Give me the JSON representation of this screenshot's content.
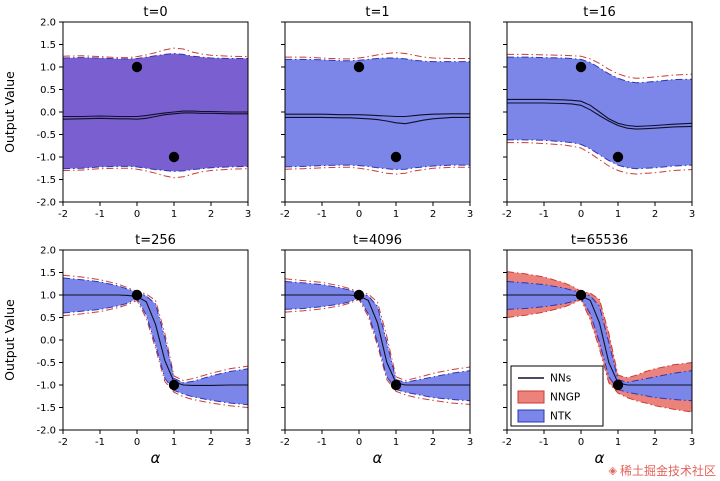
{
  "figure": {
    "ylabel": "Output Value",
    "xlabel": "α",
    "xlim": [
      -2,
      3
    ],
    "ylim": [
      -2,
      2
    ],
    "x_ticks": [
      "-2",
      "-1",
      "0",
      "1",
      "2",
      "3"
    ],
    "x_tick_values": [
      -2,
      -1,
      0,
      1,
      2,
      3
    ],
    "y_ticks": [
      "-2.0",
      "-1.5",
      "-1.0",
      "-0.5",
      "0.0",
      "0.5",
      "1.0",
      "1.5",
      "2.0"
    ],
    "y_tick_values": [
      -2,
      -1.5,
      -1,
      -0.5,
      0,
      0.5,
      1,
      1.5,
      2
    ]
  },
  "colors": {
    "ntk_fill": "#7b86e8",
    "overlap_fill": "#7a5fd0",
    "nngp_fill": "#ec827c",
    "ntk_edge": "#2a35b8",
    "nngp_edge": "#cc3b33",
    "nn_line": "#101028",
    "point": "#000000"
  },
  "legend": {
    "position": "lower-left of t=65536 panel",
    "entries": [
      {
        "label": "NNs",
        "type": "line",
        "color": "#101028",
        "edge": "#101028"
      },
      {
        "label": "NNGP",
        "type": "patch",
        "color": "#ec827c",
        "edge": "#cc3b33"
      },
      {
        "label": "NTK",
        "type": "patch",
        "color": "#7b86e8",
        "edge": "#2a35b8"
      }
    ]
  },
  "watermark": {
    "logo_icon": "juejin-gem-icon",
    "text": "稀土掘金技术社区"
  },
  "chart_data": {
    "type": "line",
    "layout": "2x3 grid of subplots, shared axes",
    "xlabel": "α",
    "ylabel": "Output Value",
    "xlim": [
      -2,
      3
    ],
    "ylim": [
      -2,
      2
    ],
    "train_points": [
      [
        0,
        1
      ],
      [
        1,
        -1
      ]
    ],
    "x": [
      -2,
      -1.5,
      -1,
      -0.5,
      -0.25,
      0,
      0.25,
      0.5,
      0.75,
      1,
      1.25,
      1.5,
      1.75,
      2,
      2.5,
      3
    ],
    "panels": [
      {
        "title": "t=0",
        "fill": "overlap",
        "show_nngp_fill": false,
        "legend": false,
        "nn_lines": [
          [
            -0.1,
            -0.1,
            -0.09,
            -0.1,
            -0.1,
            -0.1,
            -0.08,
            -0.05,
            -0.02,
            0.0,
            0.02,
            0.02,
            0.01,
            0.01,
            0.0,
            0.0
          ],
          [
            -0.16,
            -0.15,
            -0.14,
            -0.15,
            -0.15,
            -0.16,
            -0.14,
            -0.1,
            -0.06,
            -0.04,
            -0.02,
            -0.02,
            -0.03,
            -0.03,
            -0.04,
            -0.04
          ]
        ],
        "ntk_upper": [
          1.2,
          1.21,
          1.2,
          1.18,
          1.18,
          1.19,
          1.22,
          1.25,
          1.28,
          1.3,
          1.28,
          1.24,
          1.22,
          1.2,
          1.19,
          1.19
        ],
        "ntk_lower": [
          -1.26,
          -1.25,
          -1.22,
          -1.21,
          -1.21,
          -1.22,
          -1.25,
          -1.28,
          -1.3,
          -1.32,
          -1.31,
          -1.28,
          -1.26,
          -1.24,
          -1.22,
          -1.21
        ],
        "nngp_upper": [
          1.24,
          1.25,
          1.23,
          1.21,
          1.21,
          1.23,
          1.27,
          1.32,
          1.38,
          1.42,
          1.4,
          1.33,
          1.29,
          1.26,
          1.24,
          1.23
        ],
        "nngp_lower": [
          -1.3,
          -1.29,
          -1.26,
          -1.25,
          -1.25,
          -1.27,
          -1.31,
          -1.36,
          -1.42,
          -1.46,
          -1.44,
          -1.38,
          -1.33,
          -1.3,
          -1.27,
          -1.26
        ]
      },
      {
        "title": "t=1",
        "fill": "ntk",
        "show_nngp_fill": false,
        "legend": false,
        "nn_lines": [
          [
            -0.05,
            -0.05,
            -0.05,
            -0.06,
            -0.06,
            -0.06,
            -0.07,
            -0.08,
            -0.09,
            -0.1,
            -0.1,
            -0.08,
            -0.06,
            -0.05,
            -0.04,
            -0.04
          ],
          [
            -0.12,
            -0.12,
            -0.12,
            -0.13,
            -0.13,
            -0.14,
            -0.15,
            -0.17,
            -0.2,
            -0.24,
            -0.26,
            -0.22,
            -0.18,
            -0.15,
            -0.12,
            -0.12
          ]
        ],
        "ntk_upper": [
          1.17,
          1.17,
          1.16,
          1.14,
          1.14,
          1.15,
          1.17,
          1.19,
          1.2,
          1.2,
          1.18,
          1.15,
          1.13,
          1.12,
          1.12,
          1.12
        ],
        "ntk_lower": [
          -1.22,
          -1.21,
          -1.19,
          -1.18,
          -1.18,
          -1.19,
          -1.21,
          -1.24,
          -1.26,
          -1.28,
          -1.27,
          -1.24,
          -1.22,
          -1.2,
          -1.18,
          -1.18
        ],
        "nngp_upper": [
          1.22,
          1.22,
          1.2,
          1.18,
          1.18,
          1.2,
          1.23,
          1.27,
          1.3,
          1.32,
          1.3,
          1.26,
          1.22,
          1.2,
          1.19,
          1.19
        ],
        "nngp_lower": [
          -1.27,
          -1.26,
          -1.24,
          -1.23,
          -1.23,
          -1.25,
          -1.28,
          -1.32,
          -1.36,
          -1.38,
          -1.36,
          -1.31,
          -1.28,
          -1.25,
          -1.23,
          -1.23
        ]
      },
      {
        "title": "t=16",
        "fill": "ntk",
        "show_nngp_fill": false,
        "legend": false,
        "nn_lines": [
          [
            0.28,
            0.28,
            0.28,
            0.27,
            0.26,
            0.24,
            0.15,
            0.0,
            -0.15,
            -0.25,
            -0.3,
            -0.32,
            -0.31,
            -0.3,
            -0.27,
            -0.25
          ],
          [
            0.2,
            0.2,
            0.2,
            0.19,
            0.18,
            0.15,
            0.05,
            -0.08,
            -0.2,
            -0.3,
            -0.36,
            -0.38,
            -0.37,
            -0.36,
            -0.33,
            -0.32
          ]
        ],
        "ntk_upper": [
          1.22,
          1.22,
          1.21,
          1.2,
          1.19,
          1.17,
          1.1,
          0.98,
          0.85,
          0.75,
          0.68,
          0.65,
          0.66,
          0.68,
          0.72,
          0.73
        ],
        "ntk_lower": [
          -0.62,
          -0.62,
          -0.63,
          -0.66,
          -0.68,
          -0.72,
          -0.82,
          -0.95,
          -1.08,
          -1.18,
          -1.24,
          -1.26,
          -1.25,
          -1.24,
          -1.2,
          -1.18
        ],
        "nngp_upper": [
          1.28,
          1.28,
          1.27,
          1.26,
          1.25,
          1.24,
          1.18,
          1.08,
          0.95,
          0.85,
          0.78,
          0.75,
          0.76,
          0.78,
          0.82,
          0.84
        ],
        "nngp_lower": [
          -0.68,
          -0.68,
          -0.7,
          -0.73,
          -0.76,
          -0.8,
          -0.92,
          -1.06,
          -1.2,
          -1.3,
          -1.36,
          -1.38,
          -1.36,
          -1.35,
          -1.3,
          -1.28
        ]
      },
      {
        "title": "t=256",
        "fill": "ntk",
        "show_nngp_fill": false,
        "legend": false,
        "nn_lines": [
          [
            1.0,
            1.0,
            1.0,
            1.0,
            0.99,
            0.97,
            0.85,
            0.35,
            -0.45,
            -0.93,
            -1.0,
            -1.01,
            -1.01,
            -1.01,
            -1.0,
            -1.0
          ]
        ],
        "ntk_upper": [
          1.38,
          1.34,
          1.29,
          1.2,
          1.13,
          1.06,
          0.98,
          0.8,
          0.05,
          -0.85,
          -0.95,
          -0.92,
          -0.86,
          -0.8,
          -0.7,
          -0.64
        ],
        "ntk_lower": [
          0.6,
          0.64,
          0.68,
          0.76,
          0.82,
          0.92,
          0.55,
          -0.1,
          -0.85,
          -1.12,
          -1.2,
          -1.26,
          -1.3,
          -1.34,
          -1.4,
          -1.44
        ],
        "nngp_upper": [
          1.44,
          1.4,
          1.34,
          1.24,
          1.16,
          1.08,
          1.02,
          0.88,
          0.15,
          -0.8,
          -0.9,
          -0.86,
          -0.8,
          -0.74,
          -0.64,
          -0.58
        ],
        "nngp_lower": [
          0.54,
          0.58,
          0.63,
          0.72,
          0.79,
          0.88,
          0.48,
          -0.18,
          -0.92,
          -1.16,
          -1.26,
          -1.32,
          -1.36,
          -1.4,
          -1.46,
          -1.5
        ]
      },
      {
        "title": "t=4096",
        "fill": "ntk",
        "show_nngp_fill": false,
        "legend": false,
        "nn_lines": [
          [
            1.0,
            1.0,
            1.0,
            1.0,
            1.0,
            0.98,
            0.88,
            0.38,
            -0.5,
            -0.95,
            -1.0,
            -1.0,
            -1.0,
            -1.0,
            -1.0,
            -1.0
          ]
        ],
        "ntk_upper": [
          1.3,
          1.27,
          1.23,
          1.16,
          1.11,
          1.05,
          0.98,
          0.75,
          -0.05,
          -0.88,
          -0.94,
          -0.9,
          -0.86,
          -0.82,
          -0.74,
          -0.68
        ],
        "ntk_lower": [
          0.68,
          0.7,
          0.74,
          0.8,
          0.85,
          0.93,
          0.58,
          -0.05,
          -0.82,
          -1.1,
          -1.16,
          -1.2,
          -1.24,
          -1.28,
          -1.32,
          -1.35
        ],
        "nngp_upper": [
          1.36,
          1.32,
          1.28,
          1.2,
          1.14,
          1.07,
          1.02,
          0.84,
          0.08,
          -0.82,
          -0.9,
          -0.85,
          -0.8,
          -0.74,
          -0.66,
          -0.6
        ],
        "nngp_lower": [
          0.62,
          0.65,
          0.69,
          0.76,
          0.82,
          0.9,
          0.52,
          -0.12,
          -0.88,
          -1.14,
          -1.22,
          -1.27,
          -1.31,
          -1.34,
          -1.4,
          -1.43
        ]
      },
      {
        "title": "t=65536",
        "fill": "ntk",
        "show_nngp_fill": true,
        "legend": true,
        "nn_lines": [
          [
            1.0,
            1.0,
            1.0,
            1.0,
            1.0,
            0.98,
            0.88,
            0.38,
            -0.5,
            -0.95,
            -1.0,
            -1.0,
            -1.0,
            -1.0,
            -1.0,
            -1.0
          ]
        ],
        "ntk_upper": [
          1.3,
          1.27,
          1.23,
          1.16,
          1.11,
          1.05,
          0.98,
          0.75,
          -0.05,
          -0.88,
          -0.94,
          -0.9,
          -0.86,
          -0.82,
          -0.74,
          -0.68
        ],
        "ntk_lower": [
          0.68,
          0.7,
          0.74,
          0.8,
          0.85,
          0.93,
          0.58,
          -0.05,
          -0.82,
          -1.1,
          -1.16,
          -1.2,
          -1.24,
          -1.28,
          -1.32,
          -1.35
        ],
        "nngp_upper": [
          1.52,
          1.47,
          1.4,
          1.28,
          1.2,
          1.08,
          1.04,
          0.9,
          0.15,
          -0.78,
          -0.84,
          -0.78,
          -0.7,
          -0.64,
          -0.55,
          -0.5
        ],
        "nngp_lower": [
          0.5,
          0.55,
          0.62,
          0.72,
          0.8,
          0.9,
          0.45,
          -0.2,
          -0.95,
          -1.18,
          -1.28,
          -1.35,
          -1.4,
          -1.46,
          -1.54,
          -1.6
        ]
      }
    ]
  }
}
